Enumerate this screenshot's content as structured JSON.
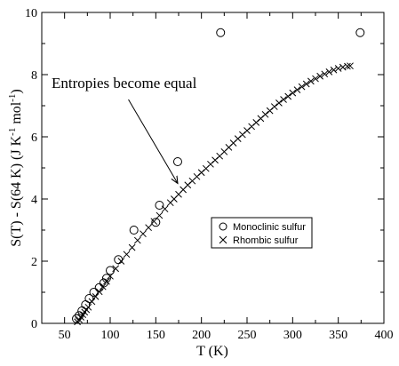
{
  "chart_data": {
    "type": "scatter",
    "xlabel": "T (K)",
    "ylabel": "S(T) - S(64 K) (J K⁻¹ mol⁻¹)",
    "ylabel_parts": {
      "main": "S(T) - S(64 K) (J K",
      "sup1": "-1",
      "mid": " mol",
      "sup2": "-1",
      "end": ")"
    },
    "xlim": [
      25,
      400
    ],
    "ylim": [
      0,
      10
    ],
    "xticks": [
      50,
      100,
      150,
      200,
      250,
      300,
      350,
      400
    ],
    "yticks": [
      0,
      2,
      4,
      6,
      8,
      10
    ],
    "grid": false,
    "legend_position": "center-right",
    "annotation": {
      "text": "Entropies become equal",
      "arrow_from": [
        120,
        7.2
      ],
      "arrow_to": [
        174,
        4.5
      ]
    },
    "series": [
      {
        "name": "Monoclinic sulfur",
        "marker": "circle",
        "x": [
          63,
          66,
          69,
          73,
          77,
          82,
          88,
          93,
          96,
          100,
          109,
          126,
          150,
          154,
          174,
          221,
          374
        ],
        "y": [
          0.15,
          0.25,
          0.4,
          0.6,
          0.8,
          1.0,
          1.15,
          1.3,
          1.45,
          1.7,
          2.05,
          3.0,
          3.25,
          3.8,
          5.2,
          9.35,
          9.35
        ]
      },
      {
        "name": "Rhombic sulfur",
        "marker": "x",
        "x": [
          64,
          66,
          68,
          70,
          72,
          74,
          76,
          80,
          84,
          88,
          92,
          96,
          100,
          106,
          112,
          118,
          124,
          130,
          136,
          142,
          148,
          154,
          160,
          166,
          170,
          175,
          180,
          185,
          190,
          195,
          200,
          205,
          210,
          215,
          220,
          225,
          230,
          235,
          240,
          245,
          250,
          255,
          260,
          265,
          270,
          275,
          280,
          285,
          290,
          295,
          300,
          305,
          310,
          315,
          320,
          325,
          330,
          335,
          340,
          345,
          350,
          355,
          360,
          363
        ],
        "y": [
          0.05,
          0.12,
          0.2,
          0.28,
          0.36,
          0.44,
          0.52,
          0.7,
          0.86,
          1.02,
          1.18,
          1.35,
          1.52,
          1.76,
          2.0,
          2.22,
          2.44,
          2.67,
          2.88,
          3.08,
          3.28,
          3.47,
          3.68,
          3.88,
          4.0,
          4.15,
          4.3,
          4.45,
          4.58,
          4.72,
          4.85,
          4.98,
          5.12,
          5.25,
          5.38,
          5.52,
          5.66,
          5.8,
          5.94,
          6.07,
          6.2,
          6.33,
          6.46,
          6.59,
          6.72,
          6.84,
          6.97,
          7.09,
          7.2,
          7.3,
          7.41,
          7.51,
          7.61,
          7.7,
          7.79,
          7.87,
          7.95,
          8.02,
          8.09,
          8.15,
          8.2,
          8.24,
          8.27,
          8.28
        ]
      }
    ]
  }
}
